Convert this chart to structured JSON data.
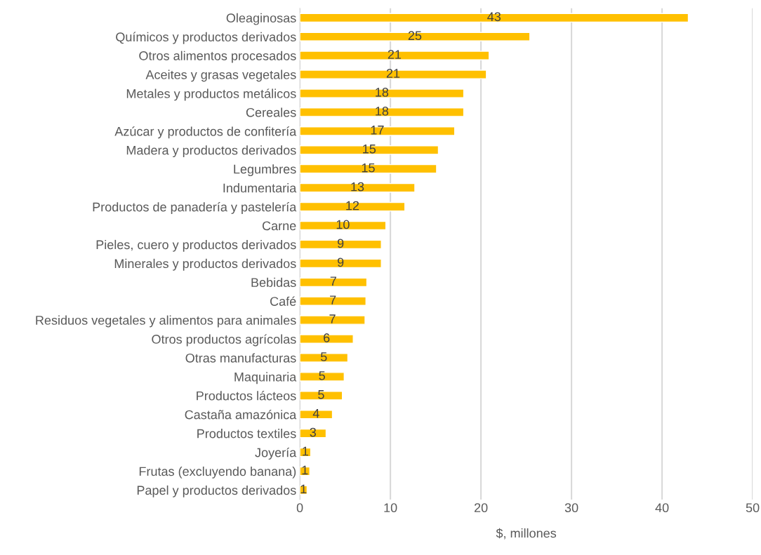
{
  "chart_data": {
    "type": "bar",
    "orientation": "horizontal",
    "xlabel": "$, millones",
    "categories": [
      "Oleaginosas",
      "Químicos y productos derivados",
      "Otros alimentos procesados",
      "Aceites y grasas vegetales",
      "Metales y productos metálicos",
      "Cereales",
      "Azúcar y productos de confitería",
      "Madera y productos derivados",
      "Legumbres",
      "Indumentaria",
      "Productos de panadería y pastelería",
      "Carne",
      "Pieles, cuero y productos derivados",
      "Minerales y productos derivados",
      "Bebidas",
      "Café",
      "Residuos vegetales y alimentos para animales",
      "Otros productos agrícolas",
      "Otras manufacturas",
      "Maquinaria",
      "Productos lácteos",
      "Castaña amazónica",
      "Productos textiles",
      "Joyería",
      "Frutas (excluyendo banana)",
      "Papel y productos derivados"
    ],
    "values": [
      42.9,
      25.4,
      20.9,
      20.6,
      18.1,
      18.1,
      17.1,
      15.3,
      15.1,
      12.7,
      11.6,
      9.5,
      9.0,
      9.0,
      7.4,
      7.3,
      7.2,
      5.9,
      5.3,
      4.9,
      4.7,
      3.6,
      2.9,
      1.2,
      1.1,
      0.8
    ],
    "value_labels": [
      "43",
      "25",
      "21",
      "21",
      "18",
      "18",
      "17",
      "15",
      "15",
      "13",
      "12",
      "10",
      "9",
      "9",
      "7",
      "7",
      "7",
      "6",
      "5",
      "5",
      "5",
      "4",
      "3",
      "1",
      "1",
      "1"
    ],
    "color": "#ffc000",
    "xlim": [
      0,
      50
    ],
    "xticks": [
      0,
      10,
      20,
      30,
      40,
      50
    ],
    "grid": "x",
    "legend": false
  }
}
